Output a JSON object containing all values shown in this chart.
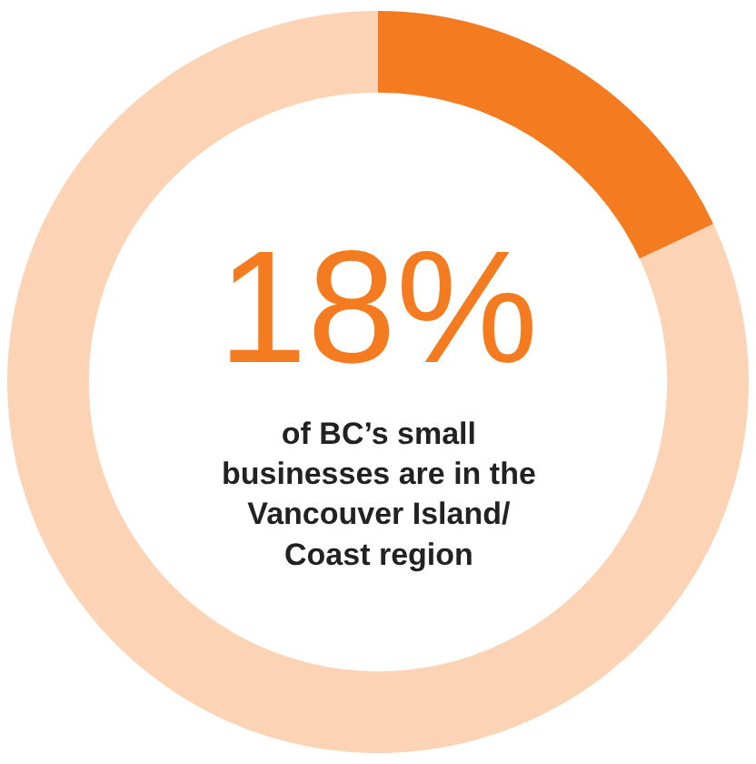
{
  "chart_data": {
    "type": "donut",
    "categories": [
      null,
      null
    ],
    "values": [
      18,
      82
    ],
    "colors": [
      "#f47b20",
      "#fdd3b5"
    ],
    "value_labels": [
      "18%",
      null
    ],
    "annotations": [
      "of BC’s small businesses are in the Vancouver Island/ Coast region"
    ]
  }
}
